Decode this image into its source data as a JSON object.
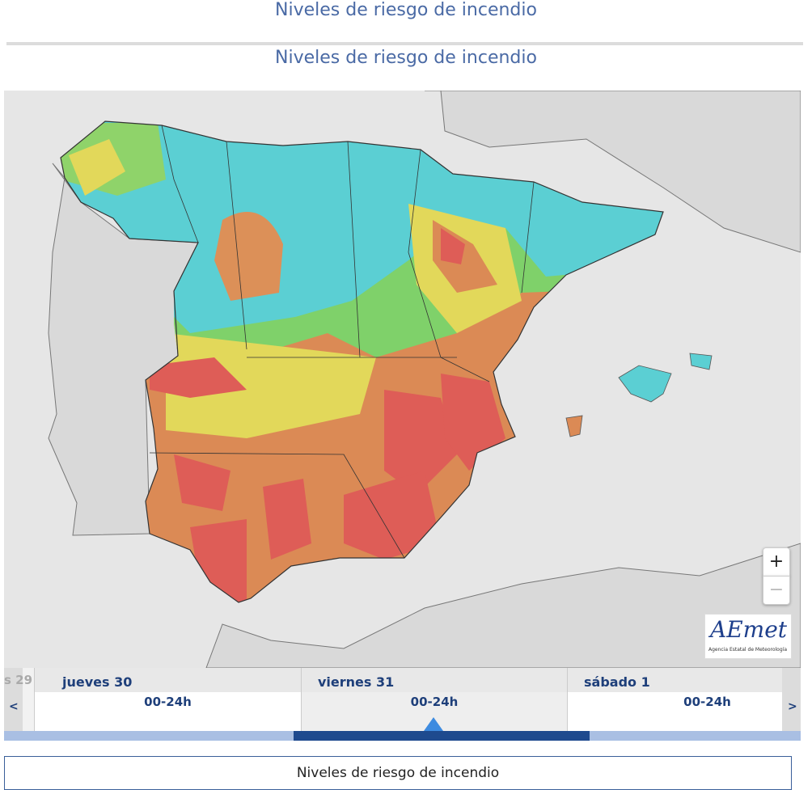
{
  "header": {
    "title": "Niveles de riesgo de incendio"
  },
  "section": {
    "title": "Niveles de riesgo de incendio"
  },
  "map": {
    "zoom_in": "+",
    "zoom_out": "−"
  },
  "logo": {
    "name": "AEmet",
    "subtitle": "Agencia Estatal de Meteorología"
  },
  "timeline": {
    "prev": "<",
    "next": ">",
    "partial_day": "s 29",
    "days": [
      {
        "label": "jueves 30",
        "period": "00-24h"
      },
      {
        "label": "viernes 31",
        "period": "00-24h"
      },
      {
        "label": "sábado 1",
        "period": "00-24h"
      }
    ]
  },
  "footer": {
    "title": "Niveles de riesgo de incendio"
  }
}
